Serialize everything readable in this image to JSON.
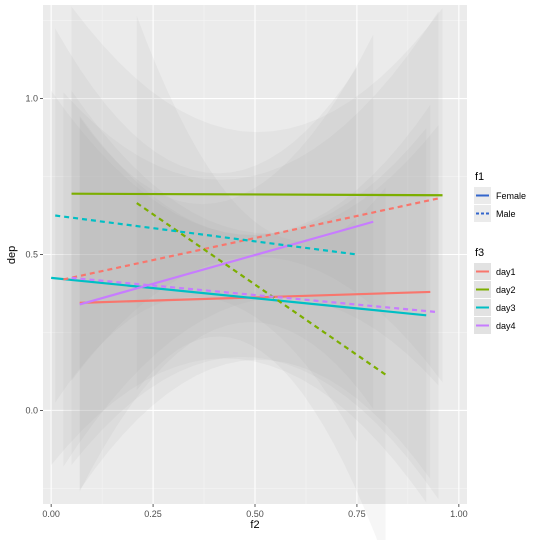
{
  "chart_data": {
    "type": "line",
    "xlabel": "f2",
    "ylabel": "dep",
    "xlim": [
      -0.02,
      1.02
    ],
    "ylim": [
      -0.3,
      1.3
    ],
    "x_ticks": [
      0.0,
      0.25,
      0.5,
      0.75,
      1.0
    ],
    "x_tick_labels": [
      "0.00",
      "0.25",
      "0.50",
      "0.75",
      "1.00"
    ],
    "y_ticks": [
      0.0,
      0.5,
      1.0
    ],
    "y_tick_labels": [
      "0.0",
      "0.5",
      "1.0"
    ],
    "grid": true,
    "legend_position": "right",
    "legends": {
      "f1": {
        "title": "f1",
        "items": [
          {
            "label": "Female",
            "linetype": "solid"
          },
          {
            "label": "Male",
            "linetype": "dashed"
          }
        ]
      },
      "f3": {
        "title": "f3",
        "items": [
          {
            "label": "day1",
            "color": "#F8766D"
          },
          {
            "label": "day2",
            "color": "#7CAE00"
          },
          {
            "label": "day3",
            "color": "#00BFC4"
          },
          {
            "label": "day4",
            "color": "#C77CFF"
          }
        ]
      }
    },
    "series": [
      {
        "f1": "Female",
        "f3": "day1",
        "color": "#F8766D",
        "dash": false,
        "x": [
          0.07,
          0.93
        ],
        "y": [
          0.345,
          0.38
        ]
      },
      {
        "f1": "Female",
        "f3": "day2",
        "color": "#7CAE00",
        "dash": false,
        "x": [
          0.05,
          0.96
        ],
        "y": [
          0.695,
          0.69
        ]
      },
      {
        "f1": "Female",
        "f3": "day3",
        "color": "#00BFC4",
        "dash": false,
        "x": [
          0.0,
          0.92
        ],
        "y": [
          0.425,
          0.305
        ]
      },
      {
        "f1": "Female",
        "f3": "day4",
        "color": "#C77CFF",
        "dash": false,
        "x": [
          0.07,
          0.79
        ],
        "y": [
          0.34,
          0.605
        ]
      },
      {
        "f1": "Male",
        "f3": "day1",
        "color": "#F8766D",
        "dash": true,
        "x": [
          0.03,
          0.95
        ],
        "y": [
          0.42,
          0.68
        ]
      },
      {
        "f1": "Male",
        "f3": "day2",
        "color": "#7CAE00",
        "dash": true,
        "x": [
          0.21,
          0.82
        ],
        "y": [
          0.665,
          0.115
        ]
      },
      {
        "f1": "Male",
        "f3": "day3",
        "color": "#00BFC4",
        "dash": true,
        "x": [
          0.01,
          0.75
        ],
        "y": [
          0.625,
          0.5
        ]
      },
      {
        "f1": "Male",
        "f3": "day4",
        "color": "#C77CFF",
        "dash": true,
        "x": [
          0.05,
          0.95
        ],
        "y": [
          0.425,
          0.315
        ]
      }
    ]
  }
}
